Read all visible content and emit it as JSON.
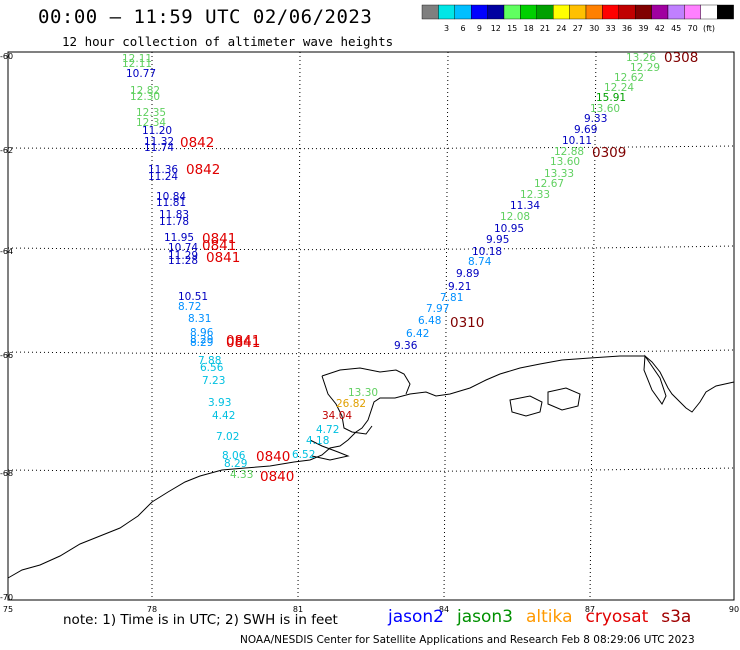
{
  "header": {
    "title": "00:00 – 11:59 UTC 02/06/2023",
    "subtitle": "12 hour collection of altimeter wave heights"
  },
  "color_scale": {
    "colors": [
      "#7f7f7f",
      "#00e6e6",
      "#00bfff",
      "#0000ff",
      "#0000a0",
      "#60ff60",
      "#00d000",
      "#00a000",
      "#ffff00",
      "#ffc000",
      "#ff8000",
      "#ff0000",
      "#c00000",
      "#800000",
      "#a000a0",
      "#c080ff",
      "#ff80ff",
      "#ffffff",
      "#000000"
    ],
    "labels": [
      "3",
      "6",
      "9",
      "12",
      "15",
      "18",
      "21",
      "24",
      "27",
      "30",
      "33",
      "36",
      "39",
      "42",
      "45",
      "70",
      "(ft)"
    ]
  },
  "axes": {
    "lon_ticks": [
      "75",
      "78",
      "81",
      "84",
      "87",
      "90"
    ],
    "lat_ticks": [
      "-60",
      "-62",
      "-64",
      "-66",
      "-68",
      "-70"
    ]
  },
  "heights": [
    {
      "text": "12.11",
      "color": "#60d060"
    },
    {
      "text": "12.11",
      "color": "#60d060"
    },
    {
      "text": "10.77",
      "color": "#0000c0"
    },
    {
      "text": "12.82",
      "color": "#60d060"
    },
    {
      "text": "12.30",
      "color": "#60d060"
    },
    {
      "text": "12.35",
      "color": "#60d060"
    },
    {
      "text": "12.34",
      "color": "#60d060"
    },
    {
      "text": "11.20",
      "color": "#0000c0"
    },
    {
      "text": "11.32",
      "color": "#0000c0"
    },
    {
      "text": "11.74",
      "color": "#0000c0"
    },
    {
      "text": "11.36",
      "color": "#0000c0"
    },
    {
      "text": "11.24",
      "color": "#0000c0"
    },
    {
      "text": "10.84",
      "color": "#0000c0"
    },
    {
      "text": "11.81",
      "color": "#0000c0"
    },
    {
      "text": "11.83",
      "color": "#0000c0"
    },
    {
      "text": "11.78",
      "color": "#0000c0"
    },
    {
      "text": "11.95",
      "color": "#0000c0"
    },
    {
      "text": "10.74",
      "color": "#0000c0"
    },
    {
      "text": "11.29",
      "color": "#0000c0"
    },
    {
      "text": "11.28",
      "color": "#0000c0"
    },
    {
      "text": "10.51",
      "color": "#0000c0"
    },
    {
      "text": "8.72",
      "color": "#0090ff"
    },
    {
      "text": "8.31",
      "color": "#0090ff"
    },
    {
      "text": "8.96",
      "color": "#0090ff"
    },
    {
      "text": "8.29",
      "color": "#0090ff"
    },
    {
      "text": "8.29",
      "color": "#0090ff"
    },
    {
      "text": "7.88",
      "color": "#00c0e0"
    },
    {
      "text": "6.56",
      "color": "#00c0e0"
    },
    {
      "text": "7.23",
      "color": "#00c0e0"
    },
    {
      "text": "3.93",
      "color": "#00c0e0"
    },
    {
      "text": "4.42",
      "color": "#00c0e0"
    },
    {
      "text": "7.02",
      "color": "#00c0e0"
    },
    {
      "text": "8.06",
      "color": "#00c0e0"
    },
    {
      "text": "8.29",
      "color": "#00c0e0"
    },
    {
      "text": "4.33",
      "color": "#60d060"
    },
    {
      "text": "6.52",
      "color": "#00c0e0"
    },
    {
      "text": "4.72",
      "color": "#00c0e0"
    },
    {
      "text": "4.18",
      "color": "#00c0e0"
    },
    {
      "text": "34.04",
      "color": "#c00000"
    },
    {
      "text": "26.82",
      "color": "#e0a000"
    },
    {
      "text": "13.30",
      "color": "#60d060"
    },
    {
      "text": "13.26",
      "color": "#60d060"
    },
    {
      "text": "12.29",
      "color": "#60d060"
    },
    {
      "text": "12.62",
      "color": "#60d060"
    },
    {
      "text": "12.24",
      "color": "#60d060"
    },
    {
      "text": "15.91",
      "color": "#00a000"
    },
    {
      "text": "13.60",
      "color": "#60d060"
    },
    {
      "text": "9.33",
      "color": "#0000c0"
    },
    {
      "text": "9.69",
      "color": "#0000c0"
    },
    {
      "text": "10.11",
      "color": "#0000c0"
    },
    {
      "text": "12.88",
      "color": "#60d060"
    },
    {
      "text": "13.60",
      "color": "#60d060"
    },
    {
      "text": "13.33",
      "color": "#60d060"
    },
    {
      "text": "12.67",
      "color": "#60d060"
    },
    {
      "text": "12.33",
      "color": "#60d060"
    },
    {
      "text": "11.34",
      "color": "#0000c0"
    },
    {
      "text": "12.08",
      "color": "#60d060"
    },
    {
      "text": "10.95",
      "color": "#0000c0"
    },
    {
      "text": "9.95",
      "color": "#0000c0"
    },
    {
      "text": "10.18",
      "color": "#0000c0"
    },
    {
      "text": "8.74",
      "color": "#0090ff"
    },
    {
      "text": "9.89",
      "color": "#0000c0"
    },
    {
      "text": "9.21",
      "color": "#0000c0"
    },
    {
      "text": "7.81",
      "color": "#0090ff"
    },
    {
      "text": "7.97",
      "color": "#0090ff"
    },
    {
      "text": "6.48",
      "color": "#0090ff"
    },
    {
      "text": "6.42",
      "color": "#0090ff"
    },
    {
      "text": "9.36",
      "color": "#0000c0"
    }
  ],
  "times": [
    {
      "text": "0842",
      "color": "#e00000"
    },
    {
      "text": "0842",
      "color": "#e00000"
    },
    {
      "text": "0841",
      "color": "#e00000"
    },
    {
      "text": "0841",
      "color": "#e00000"
    },
    {
      "text": "0841",
      "color": "#e00000"
    },
    {
      "text": "0841",
      "color": "#e00000"
    },
    {
      "text": "0841",
      "color": "#e00000"
    },
    {
      "text": "0840",
      "color": "#e00000"
    },
    {
      "text": "0840",
      "color": "#e00000"
    },
    {
      "text": "0308",
      "color": "#800000"
    },
    {
      "text": "0309",
      "color": "#800000"
    },
    {
      "text": "0310",
      "color": "#800000"
    }
  ],
  "footer": {
    "note": "note: 1) Time is in UTC; 2) SWH is in feet",
    "credit": "NOAA/NESDIS Center for Satellite Applications and Research   Feb  8 08:29:06 UTC 2023",
    "satellites": [
      {
        "name": "jason2",
        "color": "#0000ff"
      },
      {
        "name": "jason3",
        "color": "#009000"
      },
      {
        "name": "altika",
        "color": "#ff9900"
      },
      {
        "name": "cryosat",
        "color": "#e00000"
      },
      {
        "name": "s3a",
        "color": "#a00000"
      }
    ]
  }
}
